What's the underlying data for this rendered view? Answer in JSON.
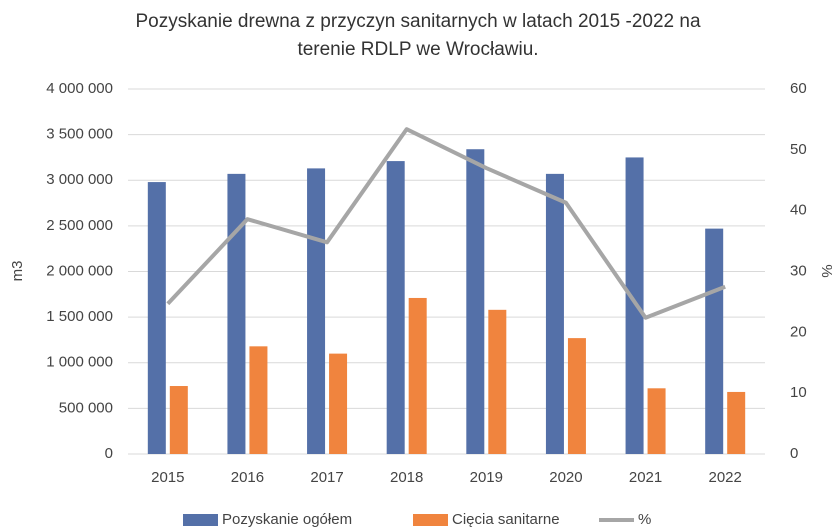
{
  "chart_data": {
    "type": "bar_line",
    "title": [
      "Pozyskanie drewna z przyczyn sanitarnych w latach 2015 -2022 na",
      "terenie RDLP we Wrocławiu."
    ],
    "y_label": "m3",
    "y2_label": "%",
    "categories": [
      "2015",
      "2016",
      "2017",
      "2018",
      "2019",
      "2020",
      "2021",
      "2022"
    ],
    "series": [
      {
        "name": "Pozyskanie ogółem",
        "color": "#5470a8",
        "type": "bar",
        "values": [
          2980000,
          3070000,
          3130000,
          3210000,
          3340000,
          3070000,
          3250000,
          2470000
        ]
      },
      {
        "name": "Cięcia sanitarne",
        "color": "#f0843e",
        "type": "bar",
        "values": [
          745000,
          1180000,
          1100000,
          1710000,
          1580000,
          1270000,
          720000,
          680000
        ]
      },
      {
        "name": "%",
        "color": "#a6a6a6",
        "type": "line",
        "axis": "y2",
        "values": [
          24.7,
          38.6,
          34.8,
          53.4,
          47.0,
          41.3,
          22.4,
          27.5
        ]
      }
    ],
    "ylim": [
      0,
      4000000
    ],
    "yticks": [
      0,
      {
        "value": 500000,
        "label": "500 000"
      },
      {
        "value": 1000000,
        "label": "1 000 000"
      },
      {
        "value": 1500000,
        "label": "1 500 000"
      },
      {
        "value": 2000000,
        "label": "2 000 000"
      },
      {
        "value": 2500000,
        "label": "2 500 000"
      },
      {
        "value": 3000000,
        "label": "3 000 000"
      },
      {
        "value": 3500000,
        "label": "3 500 000"
      },
      {
        "value": 4000000,
        "label": "4 000 000"
      }
    ],
    "y2lim": [
      0,
      60
    ],
    "y2ticks": [
      0,
      10,
      20,
      30,
      40,
      50,
      60
    ],
    "grid": true,
    "legend": "bottom"
  }
}
